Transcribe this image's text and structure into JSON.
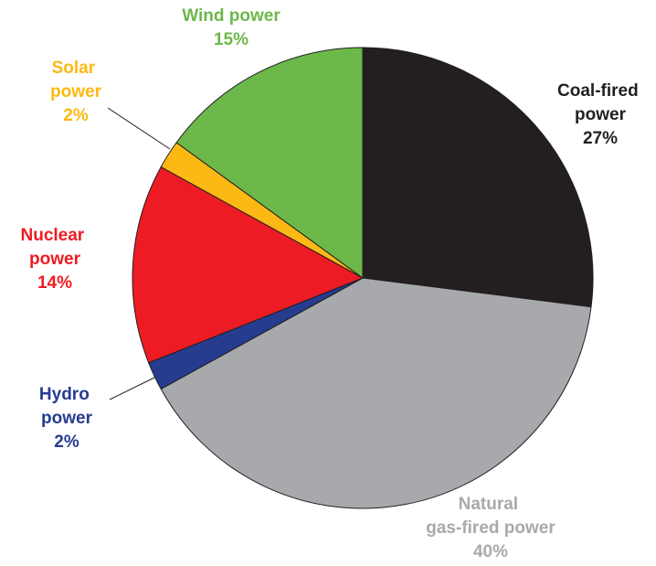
{
  "chart_data": {
    "type": "pie",
    "categories": [
      "Coal-fired power",
      "Natural gas-fired power",
      "Hydro power",
      "Nuclear power",
      "Solar power",
      "Wind power"
    ],
    "values": [
      27,
      40,
      2,
      14,
      2,
      15
    ],
    "value_labels": [
      "27%",
      "40%",
      "2%",
      "14%",
      "2%",
      "15%"
    ],
    "colors": [
      "#231f20",
      "#a7a9ac",
      "#253c8f",
      "#ed1c24",
      "#fdb913",
      "#6cb84a"
    ]
  }
}
